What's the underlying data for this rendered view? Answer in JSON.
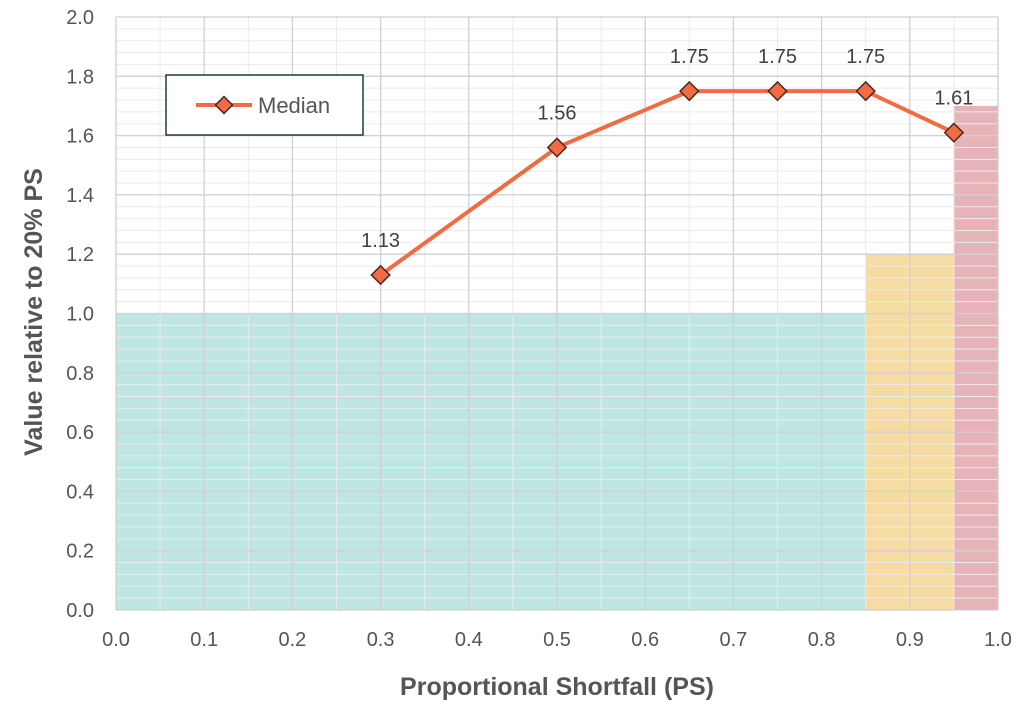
{
  "chart_data": {
    "type": "line",
    "xlabel": "Proportional Shortfall (PS)",
    "ylabel": "Value relative to 20% PS",
    "xlim": [
      0.0,
      1.0
    ],
    "ylim": [
      0.0,
      2.0
    ],
    "x_ticks": [
      "0.0",
      "0.1",
      "0.2",
      "0.3",
      "0.4",
      "0.5",
      "0.6",
      "0.7",
      "0.8",
      "0.9",
      "1.0"
    ],
    "y_ticks": [
      "0.0",
      "0.2",
      "0.4",
      "0.6",
      "0.8",
      "1.0",
      "1.2",
      "1.4",
      "1.6",
      "1.8",
      "2.0"
    ],
    "grid": true,
    "legend_position": "top-left",
    "series": [
      {
        "name": "Median",
        "color": "#F26B43",
        "x": [
          0.3,
          0.5,
          0.65,
          0.75,
          0.85,
          0.95
        ],
        "y": [
          1.13,
          1.56,
          1.75,
          1.75,
          1.75,
          1.61
        ],
        "labels": [
          "1.13",
          "1.56",
          "1.75",
          "1.75",
          "1.75",
          "1.61"
        ]
      }
    ],
    "bands": [
      {
        "x_start": 0.0,
        "x_end": 0.85,
        "value": 1.0,
        "color": "#BEE7E3"
      },
      {
        "x_start": 0.85,
        "x_end": 0.95,
        "value": 1.2,
        "color": "#F6DCA2"
      },
      {
        "x_start": 0.95,
        "x_end": 1.0,
        "value": 1.7,
        "color": "#E5B3B8"
      }
    ],
    "colors": {
      "grid_major": "#D0D0D0",
      "grid_minor": "#EBEBEB",
      "marker_edge": "#4A2A1E",
      "legend_border": "#1F3B3B"
    }
  }
}
